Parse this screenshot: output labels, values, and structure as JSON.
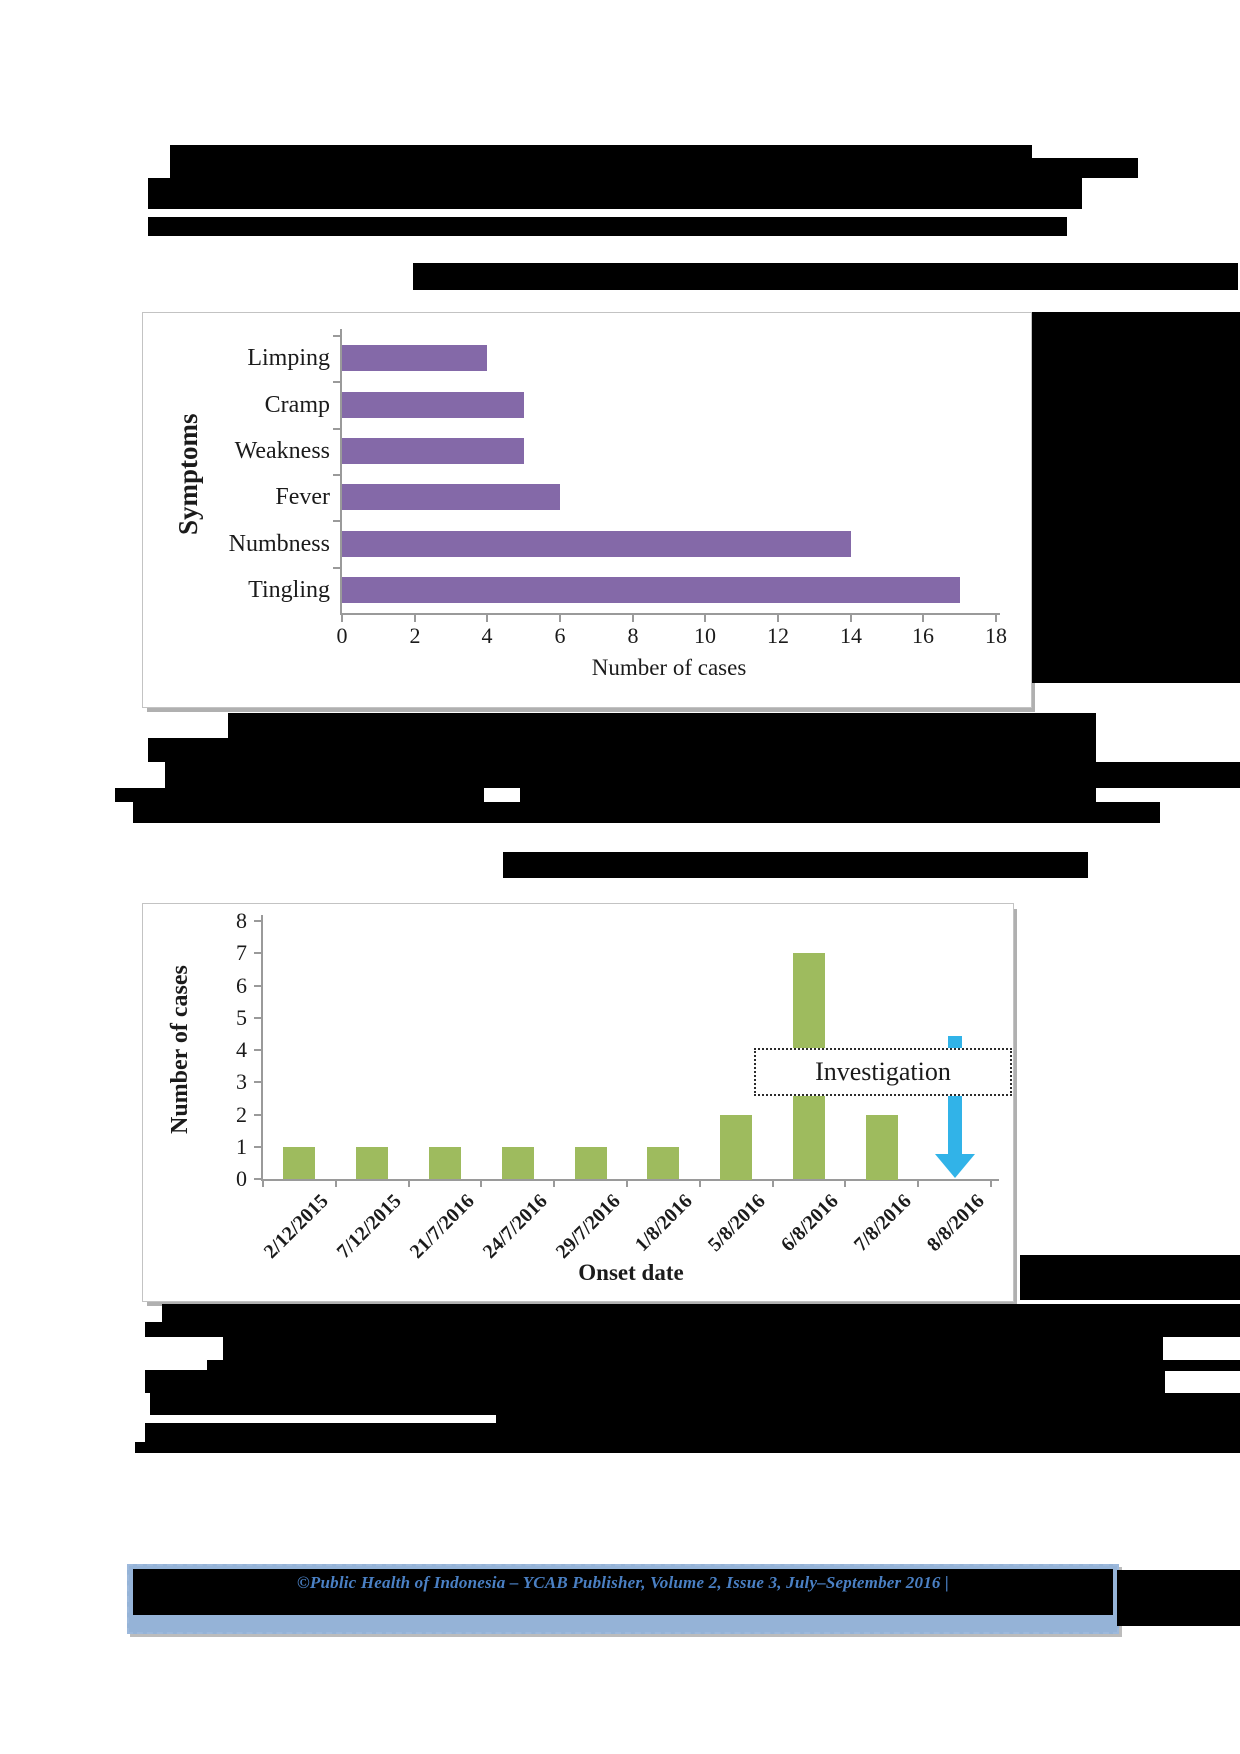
{
  "page": {
    "footer_text": "©Public Health of Indonesia – YCAB Publisher, Volume 2, Issue 3, July–September 2016 |"
  },
  "chart_data": [
    {
      "type": "bar",
      "orientation": "horizontal",
      "title": "",
      "ylabel": "Symptoms",
      "xlabel": "Number of cases",
      "categories": [
        "Limping",
        "Cramp",
        "Weakness",
        "Fever",
        "Numbness",
        "Tingling"
      ],
      "values": [
        4,
        5,
        5,
        6,
        14,
        17
      ],
      "xlim": [
        0,
        18
      ],
      "xticks": [
        0,
        2,
        4,
        6,
        8,
        10,
        12,
        14,
        16,
        18
      ],
      "bar_color": "#8469A8",
      "grid": false,
      "legend": "none"
    },
    {
      "type": "bar",
      "orientation": "vertical",
      "title": "",
      "ylabel": "Number of cases",
      "xlabel": "Onset date",
      "categories": [
        "2/12/2015",
        "7/12/2015",
        "21/7/2016",
        "24/7/2016",
        "29/7/2016",
        "1/8/2016",
        "5/8/2016",
        "6/8/2016",
        "7/8/2016",
        "8/8/2016"
      ],
      "values": [
        1,
        1,
        1,
        1,
        1,
        1,
        2,
        7,
        2,
        0
      ],
      "ylim": [
        0,
        8
      ],
      "yticks": [
        0,
        1,
        2,
        3,
        4,
        5,
        6,
        7,
        8
      ],
      "bar_color": "#9EBB5E",
      "grid": false,
      "legend": "none",
      "annotation": {
        "label": "Investigation",
        "arrow_color": "#31B3E8",
        "arrow_category": "8/8/2016"
      }
    }
  ]
}
